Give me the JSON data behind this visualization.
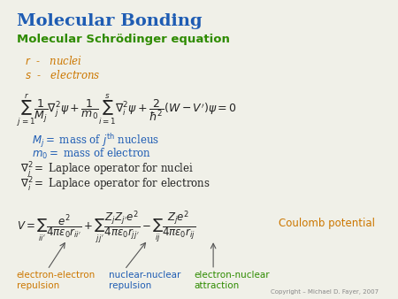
{
  "title": "Molecular Bonding",
  "subtitle": "Molecular Schrödinger equation",
  "title_color": "#1e5cb3",
  "subtitle_color": "#2e8b00",
  "orange_color": "#cc7700",
  "blue_color": "#1e5cb3",
  "green_color": "#2e8b00",
  "black_color": "#222222",
  "bg_color": "#f0f0e8",
  "copyright": "Copyright – Michael D. Fayer, 2007",
  "r_label": "$r$  -   nuclei",
  "s_label": "$s$  -   electrons",
  "schrodinger_eq": "$\\sum_{j=1}^{r}\\dfrac{1}{M_j}\\nabla_j^2\\psi + \\dfrac{1}{m_0}\\sum_{i=1}^{s}\\nabla_i^2\\psi + \\dfrac{2}{\\hbar^2}\\left(W - V^{\\prime}\\right)\\psi = 0$",
  "mj_def": "$M_j = $ mass of $j^{\\mathrm{th}}$ nucleus",
  "m0_def": "$m_0 = $ mass of electron",
  "nabla_j_def": "$\\nabla_j^2 = $ Laplace operator for nuclei",
  "nabla_i_def": "$\\nabla_i^2 = $ Laplace operator for electrons",
  "potential_eq": "$V = \\sum_{ii^{\\prime}}\\dfrac{e^2}{4\\pi\\varepsilon_0 r_{ii^{\\prime}}} + \\sum_{jj^{\\prime}}\\dfrac{Z_j Z_{j^{\\prime}} e^2}{4\\pi\\varepsilon_0 r_{jj^{\\prime}}} - \\sum_{ij}\\dfrac{Z_j e^2}{4\\pi\\varepsilon_0 r_{ij}}$",
  "coulomb_label": "Coulomb potential",
  "ee_label": "electron-electron\nrepulsion",
  "nn_label": "nuclear-nuclear\nrepulsion",
  "en_label": "electron-nuclear\nattraction"
}
